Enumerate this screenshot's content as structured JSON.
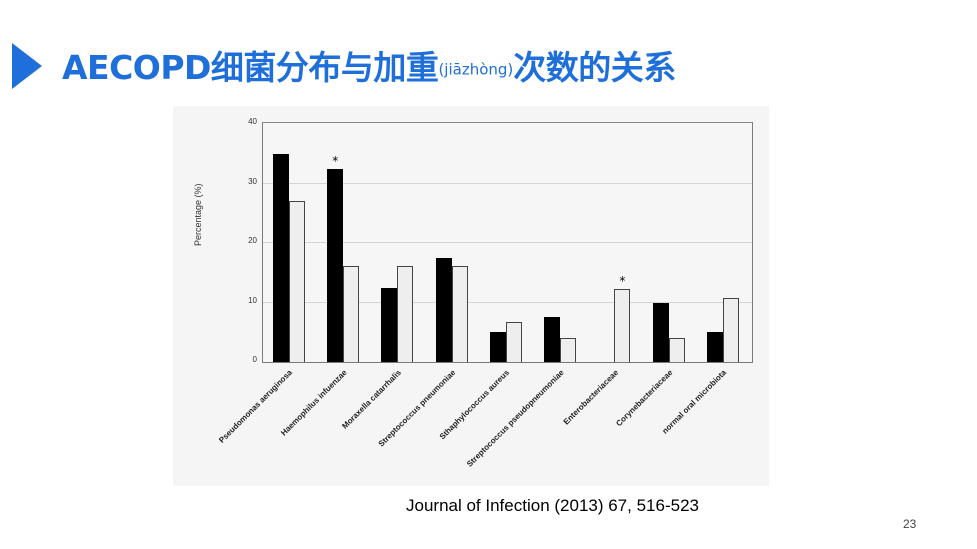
{
  "slide": {
    "title_main": "AECOPD细菌分布与加重",
    "title_pinyin": "(jiāzhòng)",
    "title_tail": "次数的关系",
    "citation": "Journal of Infection (2013) 67, 516-523",
    "page_number": "23",
    "accent_color": "#1e6fd9"
  },
  "chart_data": {
    "type": "bar",
    "title": "",
    "xlabel": "",
    "ylabel": "Percentage (%)",
    "ylim": [
      0,
      40
    ],
    "yticks": [
      "0",
      "10",
      "20",
      "30",
      "40"
    ],
    "grid": true,
    "categories": [
      "Pseudomonas aeruginosa",
      "Haemophilus infuenzae",
      "Moraxella catarrhalis",
      "Streptococcus pneumoniae",
      "Sthaphylococcus aureus",
      "Streptococcus pseudopneumoniae",
      "Enterobacteriaceae",
      "Corynebacteriaceae",
      "normal oral microbiota"
    ],
    "series": [
      {
        "name": "black",
        "color": "#000000",
        "values": [
          35,
          32.5,
          12.5,
          17.5,
          5,
          7.5,
          0,
          10,
          5
        ]
      },
      {
        "name": "white",
        "color": "#eeeeee",
        "values": [
          27,
          16.2,
          16.2,
          16.2,
          6.8,
          4,
          12.2,
          4,
          10.8
        ]
      }
    ],
    "annotations": [
      {
        "text": "*",
        "category": "Haemophilus infuenzae",
        "series": "black"
      },
      {
        "text": "*",
        "category": "Enterobacteriaceae",
        "series": "white"
      }
    ]
  }
}
